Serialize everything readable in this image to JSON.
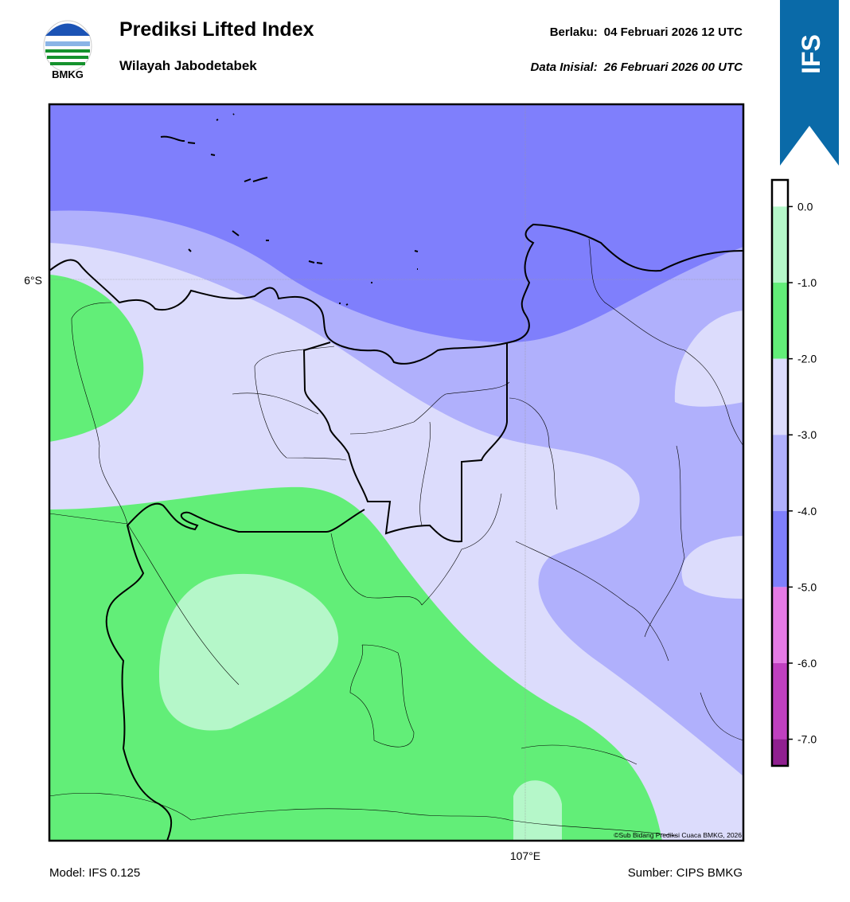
{
  "header": {
    "title": "Prediksi Lifted Index",
    "subtitle": "Wilayah Jabodetabek",
    "valid_label": "Berlaku:",
    "valid_time": "04 Februari 2026 12 UTC",
    "init_label": "Data Inisial:",
    "init_time": "26 Februari 2026 00 UTC",
    "logo_text": "BMKG",
    "banner": "IFS"
  },
  "map": {
    "lat_label": "6°S",
    "lon_label": "107°E",
    "copyright": "©Sub Bidang Prediksi Cuaca BMKG, 2026"
  },
  "colorbar": {
    "lim": [
      -7.35,
      0.35
    ],
    "ticks": [
      {
        "value": 0,
        "label": "0.0"
      },
      {
        "value": -1,
        "label": "-1.0"
      },
      {
        "value": -2,
        "label": "-2.0"
      },
      {
        "value": -3,
        "label": "-3.0"
      },
      {
        "value": -4,
        "label": "-4.0"
      },
      {
        "value": -5,
        "label": "-5.0"
      },
      {
        "value": -6,
        "label": "-6.0"
      },
      {
        "value": -7,
        "label": "-7.0"
      }
    ],
    "bands": [
      {
        "from": 0,
        "to": 0.35,
        "color": "#ffffff"
      },
      {
        "from": -1,
        "to": 0,
        "color": "#b5f7c9"
      },
      {
        "from": -2,
        "to": -1,
        "color": "#62ee78"
      },
      {
        "from": -3,
        "to": -2,
        "color": "#dcdcfc"
      },
      {
        "from": -4,
        "to": -3,
        "color": "#b0b0fc"
      },
      {
        "from": -5,
        "to": -4,
        "color": "#7f7ffc"
      },
      {
        "from": -6,
        "to": -5,
        "color": "#e47ae4"
      },
      {
        "from": -7,
        "to": -6,
        "color": "#c040c0"
      },
      {
        "from": -7.35,
        "to": -7,
        "color": "#902090"
      }
    ]
  },
  "footer": {
    "model": "Model: IFS 0.125",
    "source": "Sumber: CIPS BMKG"
  }
}
